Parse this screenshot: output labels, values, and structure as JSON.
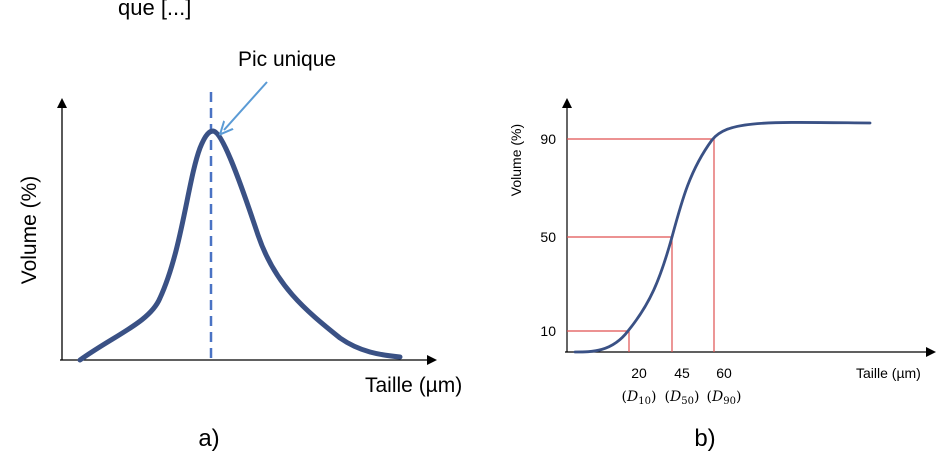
{
  "header_fragment": "que [...]",
  "panel_labels": [
    "a)",
    "b)"
  ],
  "chart_data": [
    {
      "type": "line",
      "panel": "a)",
      "xlabel": "Taille (µm)",
      "ylabel": "Volume (%)",
      "annotation": "Pic unique",
      "ticks": "none",
      "colors": {
        "curve": "#3a5185",
        "marker": "#4a73c4",
        "arrow": "#5b9bd5"
      }
    },
    {
      "type": "line",
      "panel": "b)",
      "xlabel": "Taille (µm)",
      "ylabel": "Volume (%)",
      "y_ticks": [
        10,
        50,
        90
      ],
      "x_ticks": [
        {
          "value": 20,
          "label": "20",
          "sub": "(D10)",
          "sym": "D",
          "idx": "10"
        },
        {
          "value": 45,
          "label": "45",
          "sub": "(D50)",
          "sym": "D",
          "idx": "50"
        },
        {
          "value": 60,
          "label": "60",
          "sub": "(D90)",
          "sym": "D",
          "idx": "90"
        }
      ],
      "reference_lines": [
        {
          "x": 20,
          "y": 10
        },
        {
          "x": 45,
          "y": 50
        },
        {
          "x": 60,
          "y": 90
        }
      ],
      "colors": {
        "curve": "#3a5185",
        "reference": "#e05252"
      }
    }
  ]
}
